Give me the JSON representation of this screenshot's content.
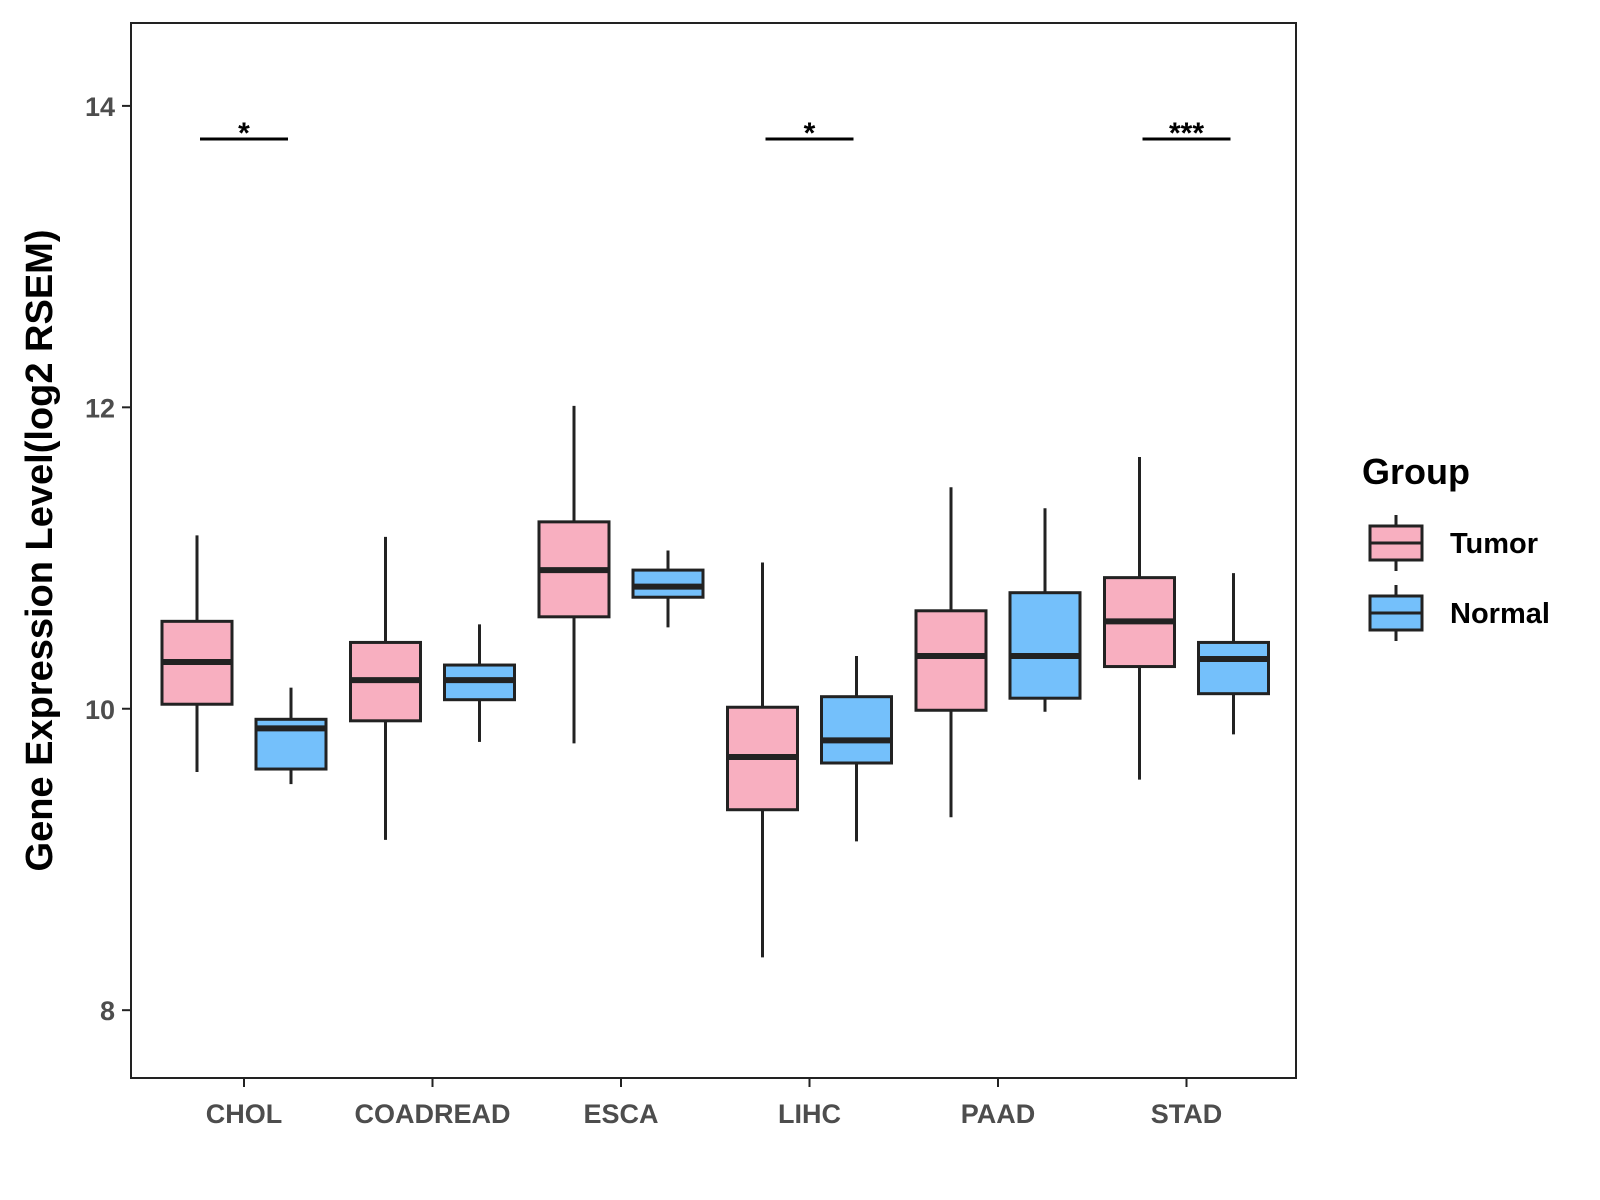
{
  "chart_data": {
    "type": "boxplot",
    "title": "",
    "xlabel": "",
    "ylabel": "Gene Expression Level(log2 RSEM)",
    "ylim": [
      7.55,
      14.55
    ],
    "yticks": [
      8,
      10,
      12,
      14
    ],
    "categories": [
      "CHOL",
      "COADREAD",
      "ESCA",
      "LIHC",
      "PAAD",
      "STAD"
    ],
    "legend": {
      "title": "Group",
      "position": "right"
    },
    "series": [
      {
        "name": "Tumor",
        "color": "#F8AFC0",
        "boxes": [
          {
            "lower_whisker": 9.58,
            "q1": 10.03,
            "median": 10.31,
            "q3": 10.58,
            "upper_whisker": 11.15
          },
          {
            "lower_whisker": 9.13,
            "q1": 9.92,
            "median": 10.19,
            "q3": 10.44,
            "upper_whisker": 11.14
          },
          {
            "lower_whisker": 9.77,
            "q1": 10.61,
            "median": 10.92,
            "q3": 11.24,
            "upper_whisker": 12.01
          },
          {
            "lower_whisker": 8.35,
            "q1": 9.33,
            "median": 9.68,
            "q3": 10.01,
            "upper_whisker": 10.97
          },
          {
            "lower_whisker": 9.28,
            "q1": 9.99,
            "median": 10.35,
            "q3": 10.65,
            "upper_whisker": 11.47
          },
          {
            "lower_whisker": 9.53,
            "q1": 10.28,
            "median": 10.58,
            "q3": 10.87,
            "upper_whisker": 11.67
          }
        ]
      },
      {
        "name": "Normal",
        "color": "#74C0FB",
        "boxes": [
          {
            "lower_whisker": 9.5,
            "q1": 9.6,
            "median": 9.87,
            "q3": 9.93,
            "upper_whisker": 10.14
          },
          {
            "lower_whisker": 9.78,
            "q1": 10.06,
            "median": 10.19,
            "q3": 10.29,
            "upper_whisker": 10.56
          },
          {
            "lower_whisker": 10.54,
            "q1": 10.74,
            "median": 10.81,
            "q3": 10.92,
            "upper_whisker": 11.05
          },
          {
            "lower_whisker": 9.12,
            "q1": 9.64,
            "median": 9.79,
            "q3": 10.08,
            "upper_whisker": 10.35
          },
          {
            "lower_whisker": 9.98,
            "q1": 10.07,
            "median": 10.35,
            "q3": 10.77,
            "upper_whisker": 11.33
          },
          {
            "lower_whisker": 9.83,
            "q1": 10.1,
            "median": 10.33,
            "q3": 10.44,
            "upper_whisker": 10.9
          }
        ]
      }
    ],
    "significance": [
      {
        "category": "CHOL",
        "label": "*",
        "y": 13.78
      },
      {
        "category": "LIHC",
        "label": "*",
        "y": 13.78
      },
      {
        "category": "STAD",
        "label": "***",
        "y": 13.78
      }
    ]
  }
}
